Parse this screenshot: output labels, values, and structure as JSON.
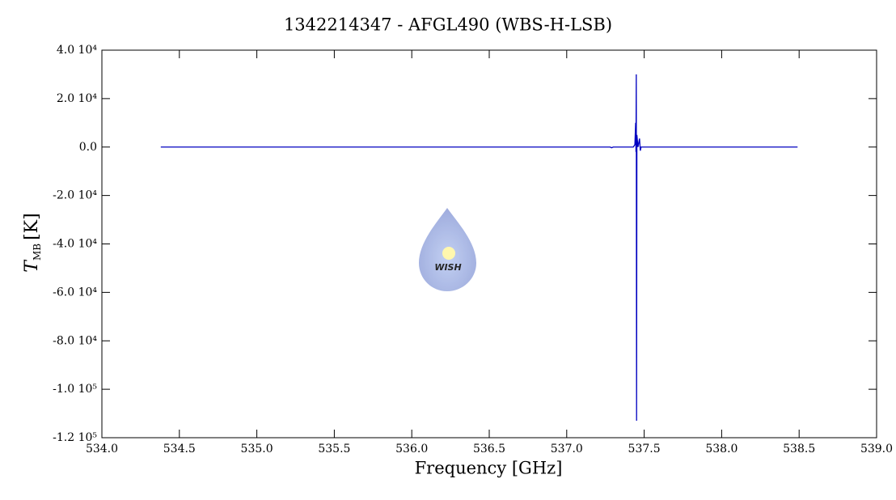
{
  "chart_data": {
    "type": "line",
    "title": "1342214347 - AFGL490 (WBS-H-LSB)",
    "x_label": "Frequency [GHz]",
    "y_label": "T",
    "y_label_sub": "MB",
    "y_label_unit": "[K]",
    "watermark": "WISH",
    "x": [
      534.38,
      537.28,
      537.29,
      537.3,
      537.43,
      537.44,
      537.445,
      537.447,
      537.449,
      537.451,
      537.453,
      537.46,
      537.47,
      537.475,
      537.48,
      538.49
    ],
    "series": [
      {
        "name": "spectrum",
        "color": "#0000c0",
        "values": [
          0,
          0,
          -300,
          0,
          0,
          1000,
          10000,
          -2000,
          30000,
          -113000,
          5000,
          0,
          3500,
          -1500,
          0,
          0
        ]
      }
    ],
    "xlim": [
      534,
      539
    ],
    "ylim": [
      -120000,
      40000
    ],
    "xticks": [
      {
        "value": 534,
        "label": "534.0"
      },
      {
        "value": 534.5,
        "label": "534.5"
      },
      {
        "value": 535,
        "label": "535.0"
      },
      {
        "value": 535.5,
        "label": "535.5"
      },
      {
        "value": 536,
        "label": "536.0"
      },
      {
        "value": 536.5,
        "label": "536.5"
      },
      {
        "value": 537,
        "label": "537.0"
      },
      {
        "value": 537.5,
        "label": "537.5"
      },
      {
        "value": 538,
        "label": "538.0"
      },
      {
        "value": 538.5,
        "label": "538.5"
      },
      {
        "value": 539,
        "label": "539.0"
      }
    ],
    "yticks": [
      {
        "value": 40000,
        "label": "4.0 10⁴"
      },
      {
        "value": 20000,
        "label": "2.0 10⁴"
      },
      {
        "value": 0,
        "label": "0.0"
      },
      {
        "value": -20000,
        "label": "-2.0 10⁴"
      },
      {
        "value": -40000,
        "label": "-4.0 10⁴"
      },
      {
        "value": -60000,
        "label": "-6.0 10⁴"
      },
      {
        "value": -80000,
        "label": "-8.0 10⁴"
      },
      {
        "value": -100000,
        "label": "-1.0 10⁵"
      },
      {
        "value": -120000,
        "label": "-1.2 10⁵"
      }
    ]
  }
}
